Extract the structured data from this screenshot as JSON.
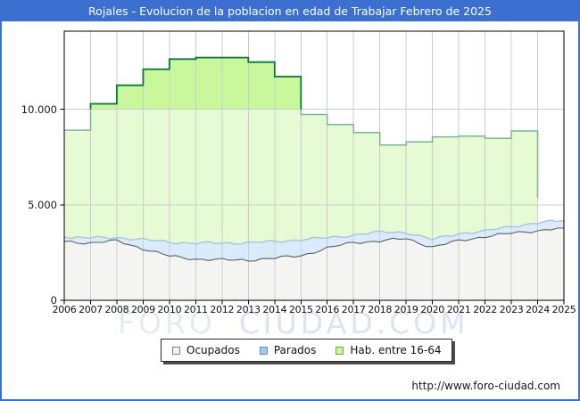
{
  "header": {
    "title": "Rojales - Evolucion de la poblacion en edad de Trabajar Febrero de 2025"
  },
  "watermark": {
    "part1": "FORO",
    "part2": "CIUDAD.COM"
  },
  "footer": {
    "url": "http://www.foro-ciudad.com"
  },
  "legend": {
    "items": [
      {
        "label": "Ocupados",
        "fill": "#f2f2f2",
        "border": "#808080"
      },
      {
        "label": "Parados",
        "fill": "#a6c9ec",
        "border": "#5e8ec2"
      },
      {
        "label": "Hab. entre 16-64",
        "fill": "#c8f59a",
        "border": "#76ab47"
      }
    ]
  },
  "colors": {
    "titlebar": "#3b70d0",
    "grid": "#cccccc",
    "plot_border": "#000000",
    "pale_green_fill": "#e6fbd4",
    "green_fill": "#c9f79b",
    "green_line": "#0a7a3c",
    "green_line_muted": "#79b694",
    "blue_fill": "#daebfb",
    "blue_line": "#a4c4e4",
    "gray_fill": "#f4f4f2",
    "gray_line": "#5f5f5f",
    "watermark1": "#e7e9f3",
    "watermark2": "#d9e4f6"
  },
  "chart_data": {
    "type": "area",
    "title": "Rojales - Evolucion de la poblacion en edad de Trabajar Febrero de 2025",
    "xlabel": "",
    "ylabel": "",
    "x_years": [
      2006,
      2007,
      2008,
      2009,
      2010,
      2011,
      2012,
      2013,
      2014,
      2015,
      2016,
      2017,
      2018,
      2019,
      2020,
      2021,
      2022,
      2023,
      2024,
      2025
    ],
    "ylim": [
      0,
      14000
    ],
    "yticks": [
      {
        "value": 0,
        "label": "0"
      },
      {
        "value": 5000,
        "label": "5.000"
      },
      {
        "value": 10000,
        "label": "10.000"
      }
    ],
    "grid": true,
    "legend_position": "bottom",
    "series": [
      {
        "name": "Ocupados",
        "style": "wiggly-area",
        "values": [
          3080,
          3000,
          3110,
          2700,
          2310,
          2160,
          2110,
          2110,
          2200,
          2340,
          2720,
          3030,
          3100,
          3230,
          2780,
          3110,
          3340,
          3500,
          3650,
          3780
        ]
      },
      {
        "name": "Parados",
        "style": "wiggly-area-stacked-on-ocupados",
        "values": [
          230,
          260,
          180,
          470,
          740,
          820,
          890,
          900,
          870,
          840,
          540,
          390,
          470,
          330,
          400,
          390,
          270,
          380,
          390,
          400
        ]
      },
      {
        "name": "Hab. entre 16-64",
        "style": "step-area",
        "values": [
          8900,
          10280,
          11250,
          12090,
          12620,
          12700,
          12700,
          12460,
          11700,
          9720,
          9200,
          8780,
          8120,
          8290,
          8550,
          8590,
          8470,
          8860,
          5360,
          null
        ]
      }
    ]
  }
}
